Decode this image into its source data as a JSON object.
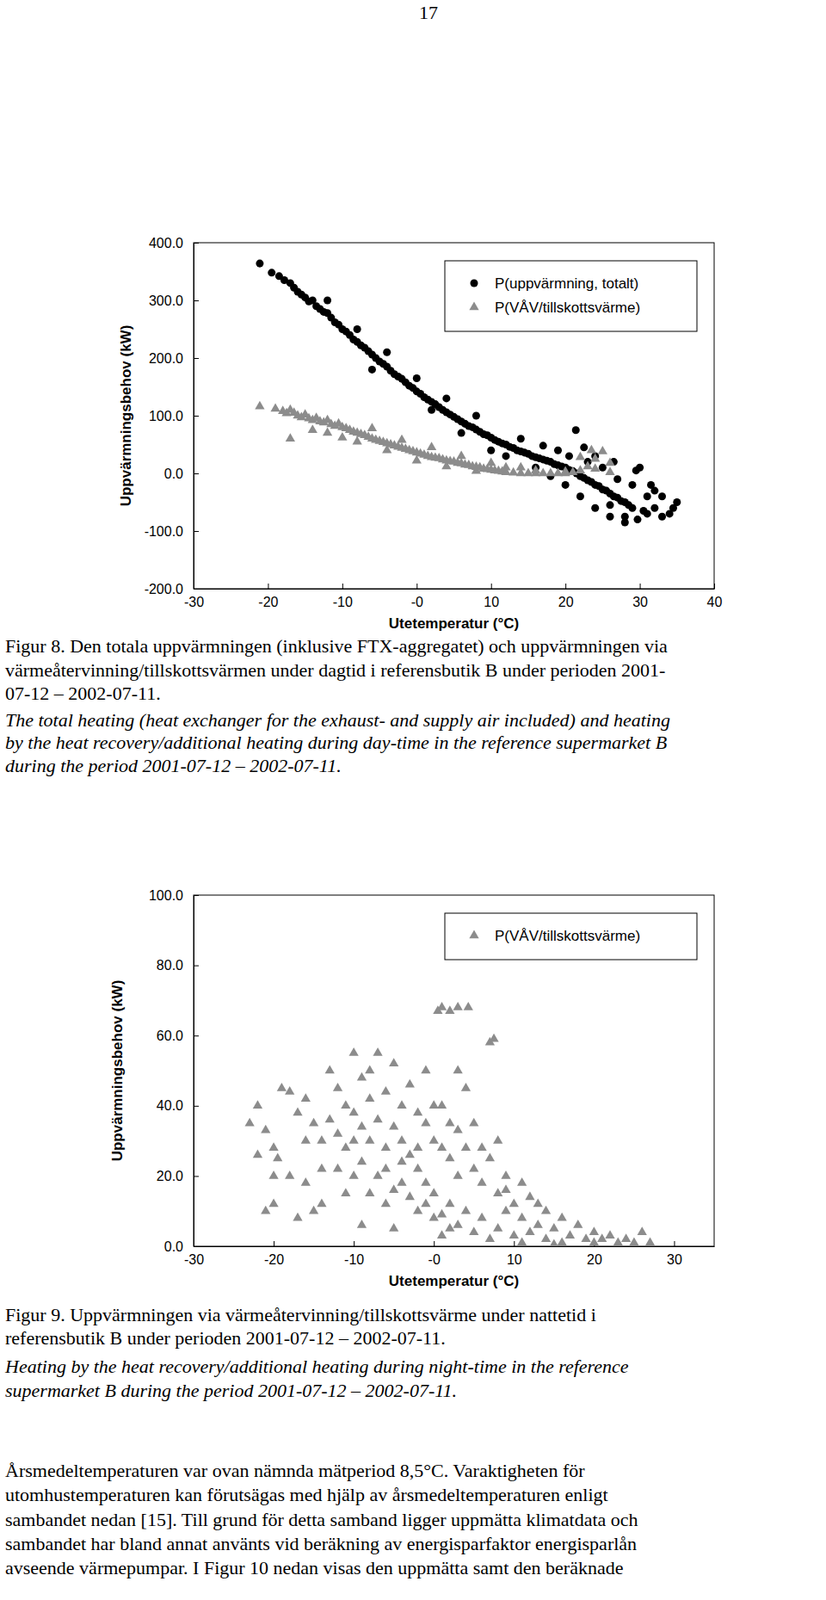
{
  "page_number": 17,
  "chart_data": [
    {
      "type": "scatter",
      "xlabel": "Utetemperatur (°C)",
      "ylabel": "Uppvärmningsbehov (kW)",
      "xlim": [
        -30,
        40
      ],
      "ylim": [
        -200,
        400
      ],
      "xticks": [
        -30,
        -20,
        -10,
        {
          "value": 0,
          "label": "-0"
        },
        10,
        20,
        30,
        40
      ],
      "yticks": [
        {
          "value": -200,
          "label": "-200.0"
        },
        {
          "value": -100,
          "label": "-100.0"
        },
        {
          "value": 0,
          "label": "0.0"
        },
        {
          "value": 100,
          "label": "100.0"
        },
        {
          "value": 200,
          "label": "200.0"
        },
        {
          "value": 300,
          "label": "300.0"
        },
        {
          "value": 400,
          "label": "400.0"
        }
      ],
      "grid": false,
      "legend": "top-right",
      "series": [
        {
          "name": "P(uppvärmning, totalt)",
          "color": "#000000",
          "marker": "circle",
          "x": [
            -21.1,
            -19.5,
            -18.5,
            -17.8,
            -17,
            -16.5,
            -16,
            -15.5,
            -15,
            -14.5,
            -14,
            -13.5,
            -13,
            -12.5,
            -12,
            -11.5,
            -11,
            -10.5,
            -10,
            -9.5,
            -9,
            -8.5,
            -8,
            -7.5,
            -7,
            -6.5,
            -6,
            -5.5,
            -5,
            -4.5,
            -4,
            -3.5,
            -3,
            -2.5,
            -2,
            -1.5,
            -1,
            -0.5,
            0,
            0.5,
            1,
            1.5,
            2,
            2.5,
            3,
            3.5,
            4,
            4.5,
            5,
            5.5,
            6,
            6.5,
            7,
            7.5,
            8,
            8.5,
            9,
            9.5,
            10,
            10.5,
            11,
            11.5,
            12,
            12.5,
            13,
            13.5,
            14,
            14.5,
            15,
            15.5,
            16,
            16.5,
            17,
            17.5,
            18,
            18.5,
            19,
            19.5,
            20,
            20.5,
            21,
            21.4,
            21.5,
            22,
            22.5,
            23,
            23.5,
            24,
            24.5,
            25,
            25.5,
            26,
            26.5,
            27,
            27.5,
            28,
            28.5,
            29,
            29.7,
            30.5,
            31,
            32,
            33,
            34,
            35,
            23,
            25,
            27,
            29,
            31,
            24,
            26,
            28,
            30,
            32,
            14,
            17,
            19,
            12,
            8,
            4,
            0,
            -4,
            -8,
            -12,
            -6,
            2,
            6,
            10,
            16,
            18,
            20,
            22,
            24,
            26,
            28,
            33,
            20.5,
            22.5,
            26.5,
            29.5,
            31.5,
            34.5
          ],
          "values": [
            364,
            348,
            342,
            335,
            330,
            322,
            315,
            310,
            305,
            298,
            300,
            290,
            285,
            280,
            278,
            270,
            262,
            258,
            250,
            246,
            240,
            232,
            228,
            222,
            218,
            212,
            206,
            200,
            194,
            190,
            185,
            178,
            172,
            168,
            164,
            158,
            152,
            148,
            142,
            138,
            132,
            128,
            124,
            120,
            115,
            110,
            106,
            102,
            98,
            94,
            90,
            86,
            82,
            80,
            76,
            72,
            68,
            66,
            62,
            58,
            55,
            52,
            50,
            46,
            44,
            40,
            38,
            36,
            34,
            30,
            28,
            26,
            24,
            22,
            20,
            16,
            14,
            12,
            10,
            6,
            4,
            75,
            0,
            -5,
            -8,
            -12,
            -15,
            -20,
            -22,
            -28,
            -30,
            -35,
            -40,
            -42,
            -48,
            -50,
            -55,
            -60,
            -80,
            -65,
            -70,
            -60,
            -75,
            -70,
            -50,
            20,
            10,
            -10,
            -20,
            -40,
            30,
            -55,
            -75,
            10,
            -30,
            60,
            48,
            40,
            30,
            100,
            130,
            165,
            210,
            250,
            300,
            180,
            110,
            70,
            40,
            10,
            -5,
            -20,
            -40,
            -60,
            -75,
            -85,
            -40,
            30,
            45,
            20,
            5,
            -20,
            -60
          ]
        },
        {
          "name": "P(VÅV/tillskottsvärme)",
          "color": "#8c8c8c",
          "marker": "triangle",
          "x": [
            -21.1,
            -19,
            -18,
            -17.5,
            -17,
            -16.5,
            -16,
            -15.5,
            -15,
            -14.5,
            -14,
            -13.5,
            -13,
            -12.5,
            -12,
            -11.5,
            -11,
            -10.5,
            -10,
            -9.5,
            -9,
            -8.5,
            -8,
            -7.5,
            -7,
            -6.5,
            -6,
            -5.5,
            -5,
            -4.5,
            -4,
            -3.5,
            -3,
            -2.5,
            -2,
            -1.5,
            -1,
            -0.5,
            0,
            0.5,
            1,
            1.5,
            2,
            2.5,
            3,
            3.5,
            4,
            4.5,
            5,
            5.5,
            6,
            6.5,
            7,
            7.5,
            8,
            8.5,
            9,
            9.5,
            10,
            10.5,
            11,
            11.5,
            12,
            13,
            14,
            15,
            16,
            17,
            18,
            19,
            20,
            21,
            22,
            23,
            24,
            25,
            22,
            26,
            23.5,
            -17,
            -14,
            -10,
            -6,
            -2,
            2,
            6,
            10,
            14,
            -8,
            -12,
            -4,
            0,
            4,
            8,
            12,
            16,
            20,
            24,
            26
          ],
          "values": [
            116,
            112,
            108,
            104,
            110,
            105,
            100,
            97,
            102,
            95,
            92,
            96,
            90,
            88,
            92,
            85,
            82,
            86,
            80,
            78,
            75,
            72,
            70,
            68,
            66,
            63,
            60,
            58,
            56,
            54,
            52,
            50,
            48,
            46,
            44,
            42,
            40,
            38,
            36,
            34,
            32,
            30,
            28,
            27,
            26,
            24,
            22,
            21,
            20,
            18,
            17,
            15,
            14,
            12,
            11,
            10,
            8,
            7,
            6,
            5,
            4,
            3,
            2,
            1,
            0,
            0,
            0,
            0,
            0,
            0,
            0,
            2,
            5,
            12,
            25,
            38,
            28,
            18,
            40,
            60,
            75,
            62,
            78,
            58,
            45,
            30,
            18,
            10,
            55,
            70,
            40,
            22,
            12,
            4,
            10,
            5,
            3,
            8,
            2
          ]
        }
      ]
    },
    {
      "type": "scatter",
      "xlabel": "Utetemperatur (°C)",
      "ylabel": "Uppvärmningsbehov (kW)",
      "xlim": [
        -30,
        35
      ],
      "ylim": [
        0,
        100
      ],
      "xticks": [
        -30,
        -20,
        -10,
        {
          "value": 0,
          "label": "-0"
        },
        10,
        20,
        30
      ],
      "yticks": [
        {
          "value": 0,
          "label": "0.0"
        },
        {
          "value": 20,
          "label": "20.0"
        },
        {
          "value": 40,
          "label": "40.0"
        },
        {
          "value": 60,
          "label": "60.0"
        },
        {
          "value": 80,
          "label": "80.0"
        },
        {
          "value": 100,
          "label": "100.0"
        }
      ],
      "grid": false,
      "legend": "top-right",
      "series": [
        {
          "name": "P(VÅV/tillskottsvärme)",
          "color": "#8c8c8c",
          "marker": "triangle",
          "x": [
            -22,
            -21,
            -20,
            -19,
            -18,
            -17,
            -16,
            -15,
            -14,
            -19.5,
            -18,
            -16,
            -14,
            -21,
            -20,
            -17,
            -13,
            -12,
            -11,
            -12,
            -11,
            -10,
            -10,
            -9,
            -9,
            -8,
            -8,
            -7,
            -7,
            -6,
            -6,
            -5,
            -5,
            -4,
            -4,
            -3,
            -3,
            -2,
            -2,
            -1,
            -1,
            0,
            0,
            0.5,
            1,
            2,
            3,
            4.3,
            1,
            1,
            2,
            2,
            3,
            3,
            4,
            4,
            5,
            5,
            6,
            6,
            7,
            7.5,
            7,
            8,
            8,
            9,
            9,
            10,
            10,
            11,
            12,
            12,
            13,
            14,
            14,
            15,
            16,
            16,
            17,
            18,
            19,
            20,
            20,
            21,
            22,
            23,
            24,
            25,
            26,
            27,
            -10,
            -8,
            -6,
            -4,
            -2,
            0,
            2,
            -11,
            -9,
            -7,
            -5,
            -3,
            -1,
            1,
            3,
            5,
            -14,
            -12,
            -10,
            -6,
            -2,
            2,
            6,
            -8,
            -4,
            0,
            4,
            8,
            -13,
            -1,
            3,
            -15,
            -9,
            -5,
            1,
            7,
            11,
            15,
            9,
            13,
            11,
            -16,
            -20,
            -23,
            -22
          ],
          "values": [
            40,
            33,
            28,
            45,
            44,
            38,
            42,
            35,
            30,
            25,
            20,
            18,
            22,
            10,
            12,
            8,
            36,
            32,
            28,
            45,
            40,
            55,
            38,
            34,
            48,
            30,
            42,
            55,
            36,
            28,
            44,
            52,
            34,
            40,
            30,
            46,
            26,
            38,
            22,
            35,
            18,
            30,
            15,
            67,
            68,
            67,
            68,
            68,
            28,
            40,
            25,
            12,
            33,
            20,
            28,
            10,
            22,
            35,
            18,
            8,
            58,
            59,
            25,
            15,
            5,
            20,
            10,
            12,
            3,
            8,
            14,
            4,
            6,
            10,
            2,
            5,
            8,
            1,
            3,
            6,
            2,
            4,
            1,
            2,
            3,
            1,
            2,
            1,
            4,
            1,
            20,
            15,
            12,
            18,
            10,
            8,
            5,
            15,
            24,
            20,
            16,
            14,
            12,
            9,
            6,
            4,
            12,
            22,
            30,
            22,
            28,
            35,
            28,
            50,
            24,
            40,
            45,
            30,
            50,
            50,
            50,
            10,
            6,
            5,
            3,
            2,
            1,
            0.5,
            16,
            12,
            18,
            30,
            20,
            35,
            26
          ]
        }
      ]
    }
  ],
  "captions": [
    {
      "lines": [
        "Figur 8. Den totala uppvärmningen (inklusive FTX-aggregatet) och uppvärmningen via",
        "värmeåtervinning/tillskottsvärmen under dagtid i referensbutik B under perioden 2001-",
        "07-12 – 2002-07-11."
      ],
      "lines_en": [
        "The total heating (heat exchanger for the exhaust- and supply air included) and heating",
        "by the heat recovery/additional heating during day-time in the reference supermarket B",
        "during the period 2001-07-12 – 2002-07-11."
      ]
    },
    {
      "lines": [
        "Figur 9. Uppvärmningen via värmeåtervinning/tillskottsvärme under nattetid i",
        "referensbutik B under perioden 2001-07-12 – 2002-07-11."
      ],
      "lines_en": [
        "Heating by the heat recovery/additional heating during night-time in the reference",
        "supermarket B during the period 2001-07-12 – 2002-07-11."
      ]
    }
  ],
  "paragraph": [
    "Årsmedeltemperaturen var ovan nämnda mätperiod 8,5°C. Varaktigheten för",
    "utomhustemperaturen kan förutsägas med hjälp av årsmedeltemperaturen enligt",
    "sambandet nedan [15]. Till grund för detta samband ligger uppmätta klimatdata och",
    "sambandet har bland annat använts vid beräkning av energisparfaktor energisparlån",
    "avseende värmepumpar. I Figur 10 nedan visas den uppmätta samt den beräknade"
  ]
}
